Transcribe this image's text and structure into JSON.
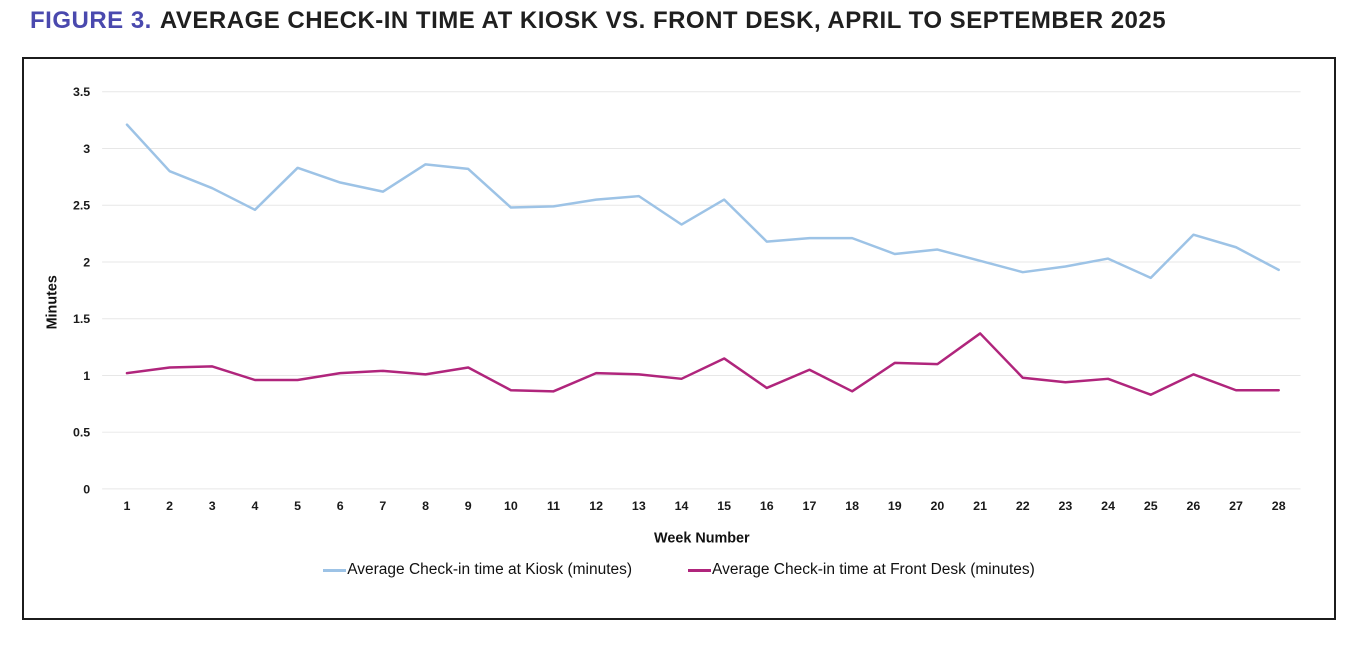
{
  "title": {
    "figure_label": "FIGURE 3.",
    "text": "AVERAGE CHECK-IN TIME AT KIOSK VS. FRONT DESK, APRIL TO SEPTEMBER 2025"
  },
  "colors": {
    "figure_label_accent": "#4a49ae",
    "title_text": "#1f1f1f",
    "kiosk_line": "#9dc3e6",
    "front_desk_line": "#b0257c",
    "gridline": "#e7e7e7",
    "panel_border": "#1c1c1c",
    "axis_text": "#1a1a1a"
  },
  "chart_data": {
    "type": "line",
    "title": "FIGURE 3. AVERAGE CHECK-IN TIME AT KIOSK VS. FRONT DESK, APRIL TO SEPTEMBER 2025",
    "xlabel": "Week Number",
    "ylabel": "Minutes",
    "x": [
      "1",
      "2",
      "3",
      "4",
      "5",
      "6",
      "7",
      "8",
      "9",
      "10",
      "11",
      "12",
      "13",
      "14",
      "15",
      "16",
      "17",
      "18",
      "19",
      "20",
      "21",
      "22",
      "23",
      "24",
      "25",
      "26",
      "27",
      "28"
    ],
    "series": [
      {
        "name": "Average Check-in time at Kiosk (minutes)",
        "color": "#9dc3e6",
        "values": [
          3.21,
          2.8,
          2.65,
          2.46,
          2.83,
          2.7,
          2.62,
          2.86,
          2.82,
          2.48,
          2.49,
          2.55,
          2.58,
          2.33,
          2.55,
          2.18,
          2.21,
          2.21,
          2.07,
          2.11,
          2.01,
          1.91,
          1.96,
          2.03,
          1.86,
          2.24,
          2.13,
          1.93
        ]
      },
      {
        "name": "Average Check-in time at Front Desk (minutes)",
        "color": "#b0257c",
        "values": [
          1.02,
          1.07,
          1.08,
          0.96,
          0.96,
          1.02,
          1.04,
          1.01,
          1.07,
          0.87,
          0.86,
          1.02,
          1.01,
          0.97,
          1.15,
          0.89,
          1.05,
          0.86,
          1.11,
          1.1,
          1.37,
          0.98,
          0.94,
          0.97,
          0.83,
          1.01,
          0.87,
          0.87
        ]
      }
    ],
    "ylim": [
      0,
      3.5
    ],
    "y_ticks": [
      0,
      0.5,
      1,
      1.5,
      2,
      2.5,
      3,
      3.5
    ],
    "grid": "horizontal",
    "legend_position": "bottom"
  }
}
